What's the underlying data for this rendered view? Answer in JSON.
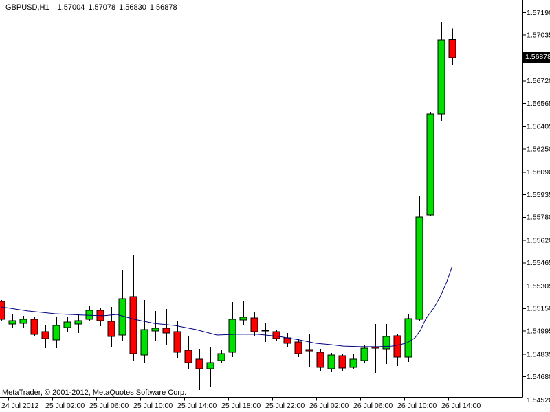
{
  "header": {
    "symbol_period": "GBPUSD,H1",
    "open": "1.57004",
    "high": "1.57078",
    "low": "1.56830",
    "close": "1.56878"
  },
  "footer": {
    "copyright": "MetaTrader, © 2001-2012, MetaQuotes Software Corp."
  },
  "colors": {
    "background": "#FFFFFF",
    "bull": "#00E000",
    "bear": "#FF0000",
    "candle_outline": "#000000",
    "wick": "#000000",
    "ma": "#000080",
    "axis": "#000000",
    "text": "#000000",
    "price_box_bg": "#000000",
    "price_box_text": "#FFFFFF"
  },
  "chart_data": {
    "type": "candlestick",
    "title": "GBPUSD,H1",
    "symbol": "GBPUSD",
    "timeframe": "H1",
    "ylim": [
      1.5452,
      1.5719
    ],
    "grid": false,
    "y_axis": {
      "labels": [
        "1.57190",
        "1.57035",
        "1.56720",
        "1.56565",
        "1.56405",
        "1.56250",
        "1.56090",
        "1.55935",
        "1.55780",
        "1.55620",
        "1.55465",
        "1.55305",
        "1.55150",
        "1.54995",
        "1.54835",
        "1.54680",
        "1.54520"
      ],
      "current": {
        "label": "1.56878",
        "value": 1.56878
      }
    },
    "x_axis": {
      "ticks": [
        {
          "index": 1,
          "label": "24 Jul 2012"
        },
        {
          "index": 5,
          "label": "25 Jul 02:00"
        },
        {
          "index": 9,
          "label": "25 Jul 06:00"
        },
        {
          "index": 13,
          "label": "25 Jul 10:00"
        },
        {
          "index": 17,
          "label": "25 Jul 14:00"
        },
        {
          "index": 21,
          "label": "25 Jul 18:00"
        },
        {
          "index": 25,
          "label": "25 Jul 22:00"
        },
        {
          "index": 29,
          "label": "26 Jul 02:00"
        },
        {
          "index": 33,
          "label": "26 Jul 06:00"
        },
        {
          "index": 37,
          "label": "26 Jul 10:00"
        },
        {
          "index": 41,
          "label": "26 Jul 14:00"
        }
      ]
    },
    "candles": [
      [
        1.55197,
        1.55206,
        1.55064,
        1.55074
      ],
      [
        1.55041,
        1.55112,
        1.55017,
        1.55064
      ],
      [
        1.55045,
        1.55098,
        1.55012,
        1.55074
      ],
      [
        1.55074,
        1.55088,
        1.54956,
        1.5497
      ],
      [
        1.54989,
        1.55036,
        1.54875,
        1.54941
      ],
      [
        1.54932,
        1.55093,
        1.54875,
        1.55031
      ],
      [
        1.55017,
        1.55088,
        1.54989,
        1.55055
      ],
      [
        1.55041,
        1.55112,
        1.54979,
        1.55064
      ],
      [
        1.55074,
        1.55169,
        1.5506,
        1.55136
      ],
      [
        1.55136,
        1.55155,
        1.55026,
        1.55064
      ],
      [
        1.5506,
        1.55159,
        1.54885,
        1.54956
      ],
      [
        1.54965,
        1.55415,
        1.54922,
        1.55216
      ],
      [
        1.5523,
        1.55519,
        1.5479,
        1.54837
      ],
      [
        1.54828,
        1.55206,
        1.54776,
        1.55003
      ],
      [
        1.54993,
        1.55131,
        1.54922,
        1.55012
      ],
      [
        1.55012,
        1.55145,
        1.54899,
        1.54979
      ],
      [
        1.54989,
        1.5506,
        1.54804,
        1.54847
      ],
      [
        1.54861,
        1.54956,
        1.54729,
        1.54776
      ],
      [
        1.54799,
        1.5487,
        1.54586,
        1.54733
      ],
      [
        1.54733,
        1.5488,
        1.54605,
        1.54776
      ],
      [
        1.5479,
        1.54865,
        1.5477,
        1.54837
      ],
      [
        1.54847,
        1.55192,
        1.54814,
        1.55074
      ],
      [
        1.55069,
        1.55197,
        1.55036,
        1.55088
      ],
      [
        1.55083,
        1.55121,
        1.54956,
        1.54989
      ],
      [
        1.54998,
        1.5505,
        1.54918,
        1.54993
      ],
      [
        1.54989,
        1.55003,
        1.54922,
        1.54941
      ],
      [
        1.54946,
        1.54979,
        1.54885,
        1.54908
      ],
      [
        1.54918,
        1.54941,
        1.54814,
        1.54837
      ],
      [
        1.54866,
        1.5497,
        1.54743,
        1.54856
      ],
      [
        1.54847,
        1.5487,
        1.54719,
        1.54743
      ],
      [
        1.54733,
        1.54842,
        1.5471,
        1.54828
      ],
      [
        1.54823,
        1.54837,
        1.54719,
        1.54738
      ],
      [
        1.54743,
        1.54832,
        1.54733,
        1.54799
      ],
      [
        1.5479,
        1.54894,
        1.54776,
        1.54875
      ],
      [
        1.54885,
        1.55041,
        1.54705,
        1.54875
      ],
      [
        1.5487,
        1.55041,
        1.54766,
        1.54956
      ],
      [
        1.5496,
        1.54974,
        1.54752,
        1.54814
      ],
      [
        1.54814,
        1.55107,
        1.54781,
        1.55079
      ],
      [
        1.55074,
        1.55921,
        1.55064,
        1.55779
      ],
      [
        1.55793,
        1.56503,
        1.55784,
        1.56489
      ],
      [
        1.56489,
        1.57124,
        1.56442,
        1.57001
      ],
      [
        1.57004,
        1.57078,
        1.5683,
        1.56878
      ]
    ],
    "moving_average": {
      "style": "line",
      "points": [
        [
          0,
          1.55159
        ],
        [
          2.4,
          1.55131
        ],
        [
          4.9,
          1.55112
        ],
        [
          7.4,
          1.55103
        ],
        [
          9.3,
          1.55098
        ],
        [
          10.5,
          1.55107
        ],
        [
          12.1,
          1.55074
        ],
        [
          13.9,
          1.55045
        ],
        [
          15.8,
          1.55031
        ],
        [
          17.7,
          1.55003
        ],
        [
          19.6,
          1.54965
        ],
        [
          21.4,
          1.5497
        ],
        [
          23.3,
          1.5497
        ],
        [
          25.2,
          1.54956
        ],
        [
          27.1,
          1.54932
        ],
        [
          28.6,
          1.54908
        ],
        [
          29.9,
          1.54899
        ],
        [
          31.1,
          1.54889
        ],
        [
          32.7,
          1.54885
        ],
        [
          34.3,
          1.54885
        ],
        [
          35.5,
          1.54889
        ],
        [
          36.3,
          1.54899
        ],
        [
          36.9,
          1.54913
        ],
        [
          37.6,
          1.54946
        ],
        [
          38.1,
          1.54998
        ],
        [
          38.6,
          1.55079
        ],
        [
          39.3,
          1.5515
        ],
        [
          39.9,
          1.5523
        ],
        [
          40.5,
          1.55334
        ],
        [
          41,
          1.55443
        ]
      ]
    }
  }
}
